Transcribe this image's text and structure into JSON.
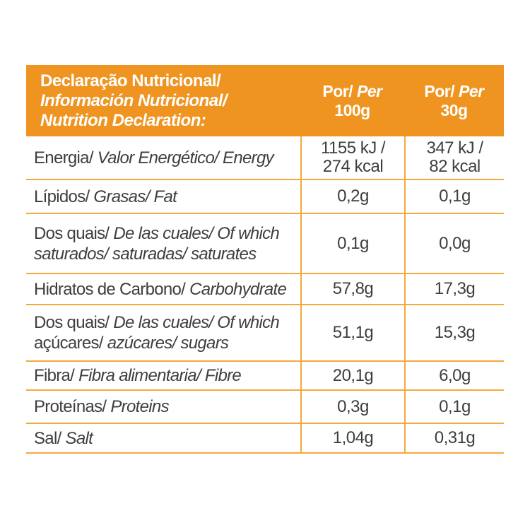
{
  "colors": {
    "header_bg": "#F09421",
    "grid_line": "#F6A83C",
    "body_text": "#3E3E3D",
    "header_text": "#FFFFFF"
  },
  "header": {
    "title_line1": "Declaração Nutricional/",
    "title_line2": "Información Nutricional/",
    "title_line3": "Nutrition Declaration:",
    "col_per100": {
      "l1_regular": "Por/",
      "l1_italic": " Per",
      "l2": "100g"
    },
    "col_per30": {
      "l1_regular": "Por/",
      "l1_italic": " Per",
      "l2": "30g"
    }
  },
  "rows": [
    {
      "label": {
        "line1_regular": "Energia/",
        "line1_italic": " Valor Energético/ Energy"
      },
      "per100": {
        "line1": "1155 kJ /",
        "line2": "274 kcal"
      },
      "per30": {
        "line1": "347 kJ /",
        "line2": "82 kcal"
      }
    },
    {
      "label": {
        "line1_regular": "Lípidos/",
        "line1_italic": " Grasas/ Fat"
      },
      "per100": {
        "line1": "0,2g"
      },
      "per30": {
        "line1": "0,1g"
      }
    },
    {
      "label": {
        "line1_regular": "Dos quais/",
        "line1_italic": " De las cuales/ Of which",
        "line2_regular": "",
        "line2_italic": "saturados/ saturadas/ saturates"
      },
      "per100": {
        "line1": "0,1g"
      },
      "per30": {
        "line1": "0,0g"
      }
    },
    {
      "label": {
        "line1_regular": "Hidratos de Carbono/",
        "line1_italic": " Carbohydrate"
      },
      "per100": {
        "line1": "57,8g"
      },
      "per30": {
        "line1": "17,3g"
      }
    },
    {
      "label": {
        "line1_regular": "Dos quais/",
        "line1_italic": " De las cuales/ Of which",
        "line2_regular": "açúcares/",
        "line2_italic": " azúcares/ sugars"
      },
      "per100": {
        "line1": "51,1g"
      },
      "per30": {
        "line1": "15,3g"
      }
    },
    {
      "label": {
        "line1_regular": "Fibra/",
        "line1_italic": " Fibra alimentaria/ Fibre"
      },
      "per100": {
        "line1": "20,1g"
      },
      "per30": {
        "line1": "6,0g"
      }
    },
    {
      "label": {
        "line1_regular": "Proteínas/",
        "line1_italic": " Proteins"
      },
      "per100": {
        "line1": "0,3g"
      },
      "per30": {
        "line1": "0,1g"
      }
    },
    {
      "label": {
        "line1_regular": "Sal/",
        "line1_italic": " Salt"
      },
      "per100": {
        "line1": "1,04g"
      },
      "per30": {
        "line1": "0,31g"
      }
    }
  ]
}
